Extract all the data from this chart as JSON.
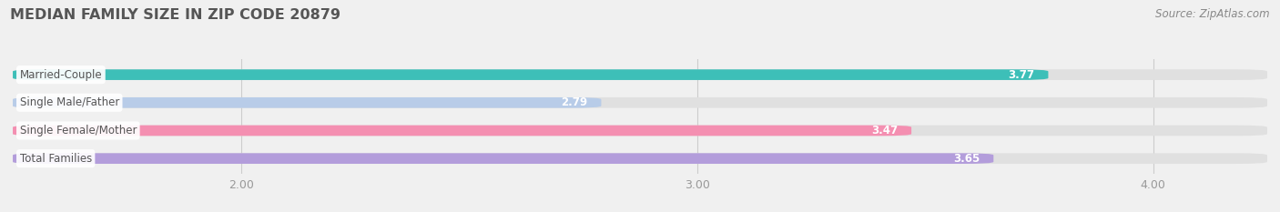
{
  "title": "MEDIAN FAMILY SIZE IN ZIP CODE 20879",
  "source": "Source: ZipAtlas.com",
  "categories": [
    "Married-Couple",
    "Single Male/Father",
    "Single Female/Mother",
    "Total Families"
  ],
  "values": [
    3.77,
    2.79,
    3.47,
    3.65
  ],
  "bar_colors": [
    "#3dbfb8",
    "#b8cce8",
    "#f48fb1",
    "#b39ddb"
  ],
  "xlim_min": 1.5,
  "xlim_max": 4.25,
  "xticks": [
    2.0,
    3.0,
    4.0
  ],
  "xtick_labels": [
    "2.00",
    "3.00",
    "4.00"
  ],
  "title_fontsize": 11.5,
  "source_fontsize": 8.5,
  "bar_height": 0.38,
  "bar_gap": 1.0,
  "background_color": "#f0f0f0",
  "track_color": "#e0e0e0",
  "label_bg_color": "#ffffff",
  "value_text_color": "#ffffff",
  "label_text_color": "#555555",
  "grid_color": "#cccccc",
  "tick_color": "#999999"
}
